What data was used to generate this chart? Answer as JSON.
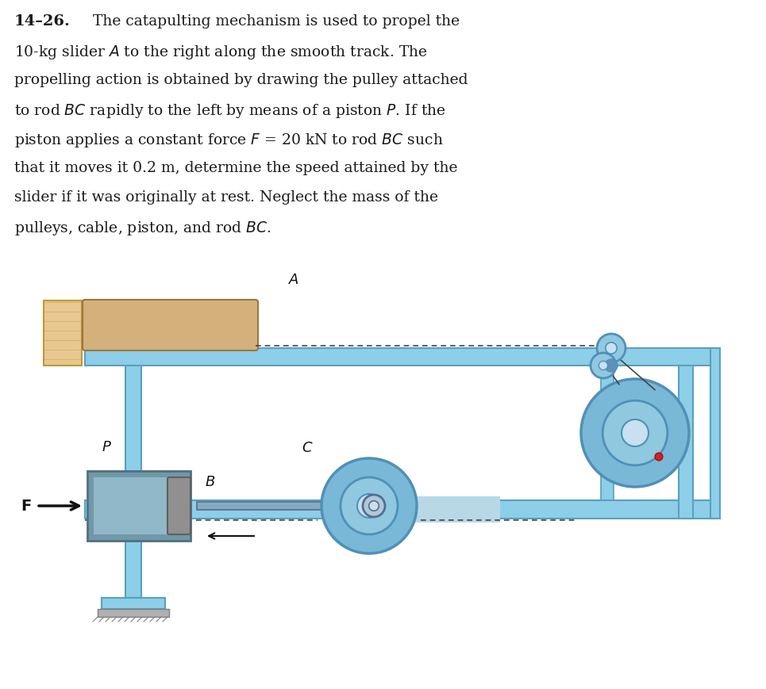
{
  "bg_color": "#ffffff",
  "text_color": "#1a1a1a",
  "problem_number": "14–26.",
  "text_lines": [
    "  The catapulting mechanism is used to propel the",
    "10-kg slider $A$ to the right along the smooth track. The",
    "propelling action is obtained by drawing the pulley attached",
    "to rod $BC$ rapidly to the left by means of a piston $P$. If the",
    "piston applies a constant force $F$ = 20 kN to rod $BC$ such",
    "that it moves it 0.2 m, determine the speed attained by the",
    "slider if it was originally at rest. Neglect the mass of the",
    "pulleys, cable, piston, and rod $BC$."
  ],
  "track_color": "#8dcee8",
  "track_edge": "#5aa0c0",
  "track_fill_light": "#b8e0f0",
  "slider_color": "#d4b07a",
  "slider_edge": "#9a7840",
  "wall_color": "#e8c890",
  "wall_edge": "#c09840",
  "pulley_outer": "#7ab8d8",
  "pulley_mid": "#5090b8",
  "pulley_inner": "#90c8e0",
  "pulley_hub": "#c8e0f0",
  "cable_color": "#444444",
  "piston_gray": "#909090",
  "piston_edge": "#606060",
  "cylinder_fill": "#7098a8",
  "cylinder_inner": "#90b8c8",
  "cylinder_edge": "#507080",
  "rod_fill": "#88aabf",
  "rod_edge": "#507090",
  "ground_fill": "#b0b0b0",
  "ground_edge": "#808080",
  "arrow_color": "#111111",
  "label_color": "#111111",
  "bold_number_fontsize": 14,
  "text_fontsize": 13.5,
  "diagram_label_fontsize": 13
}
